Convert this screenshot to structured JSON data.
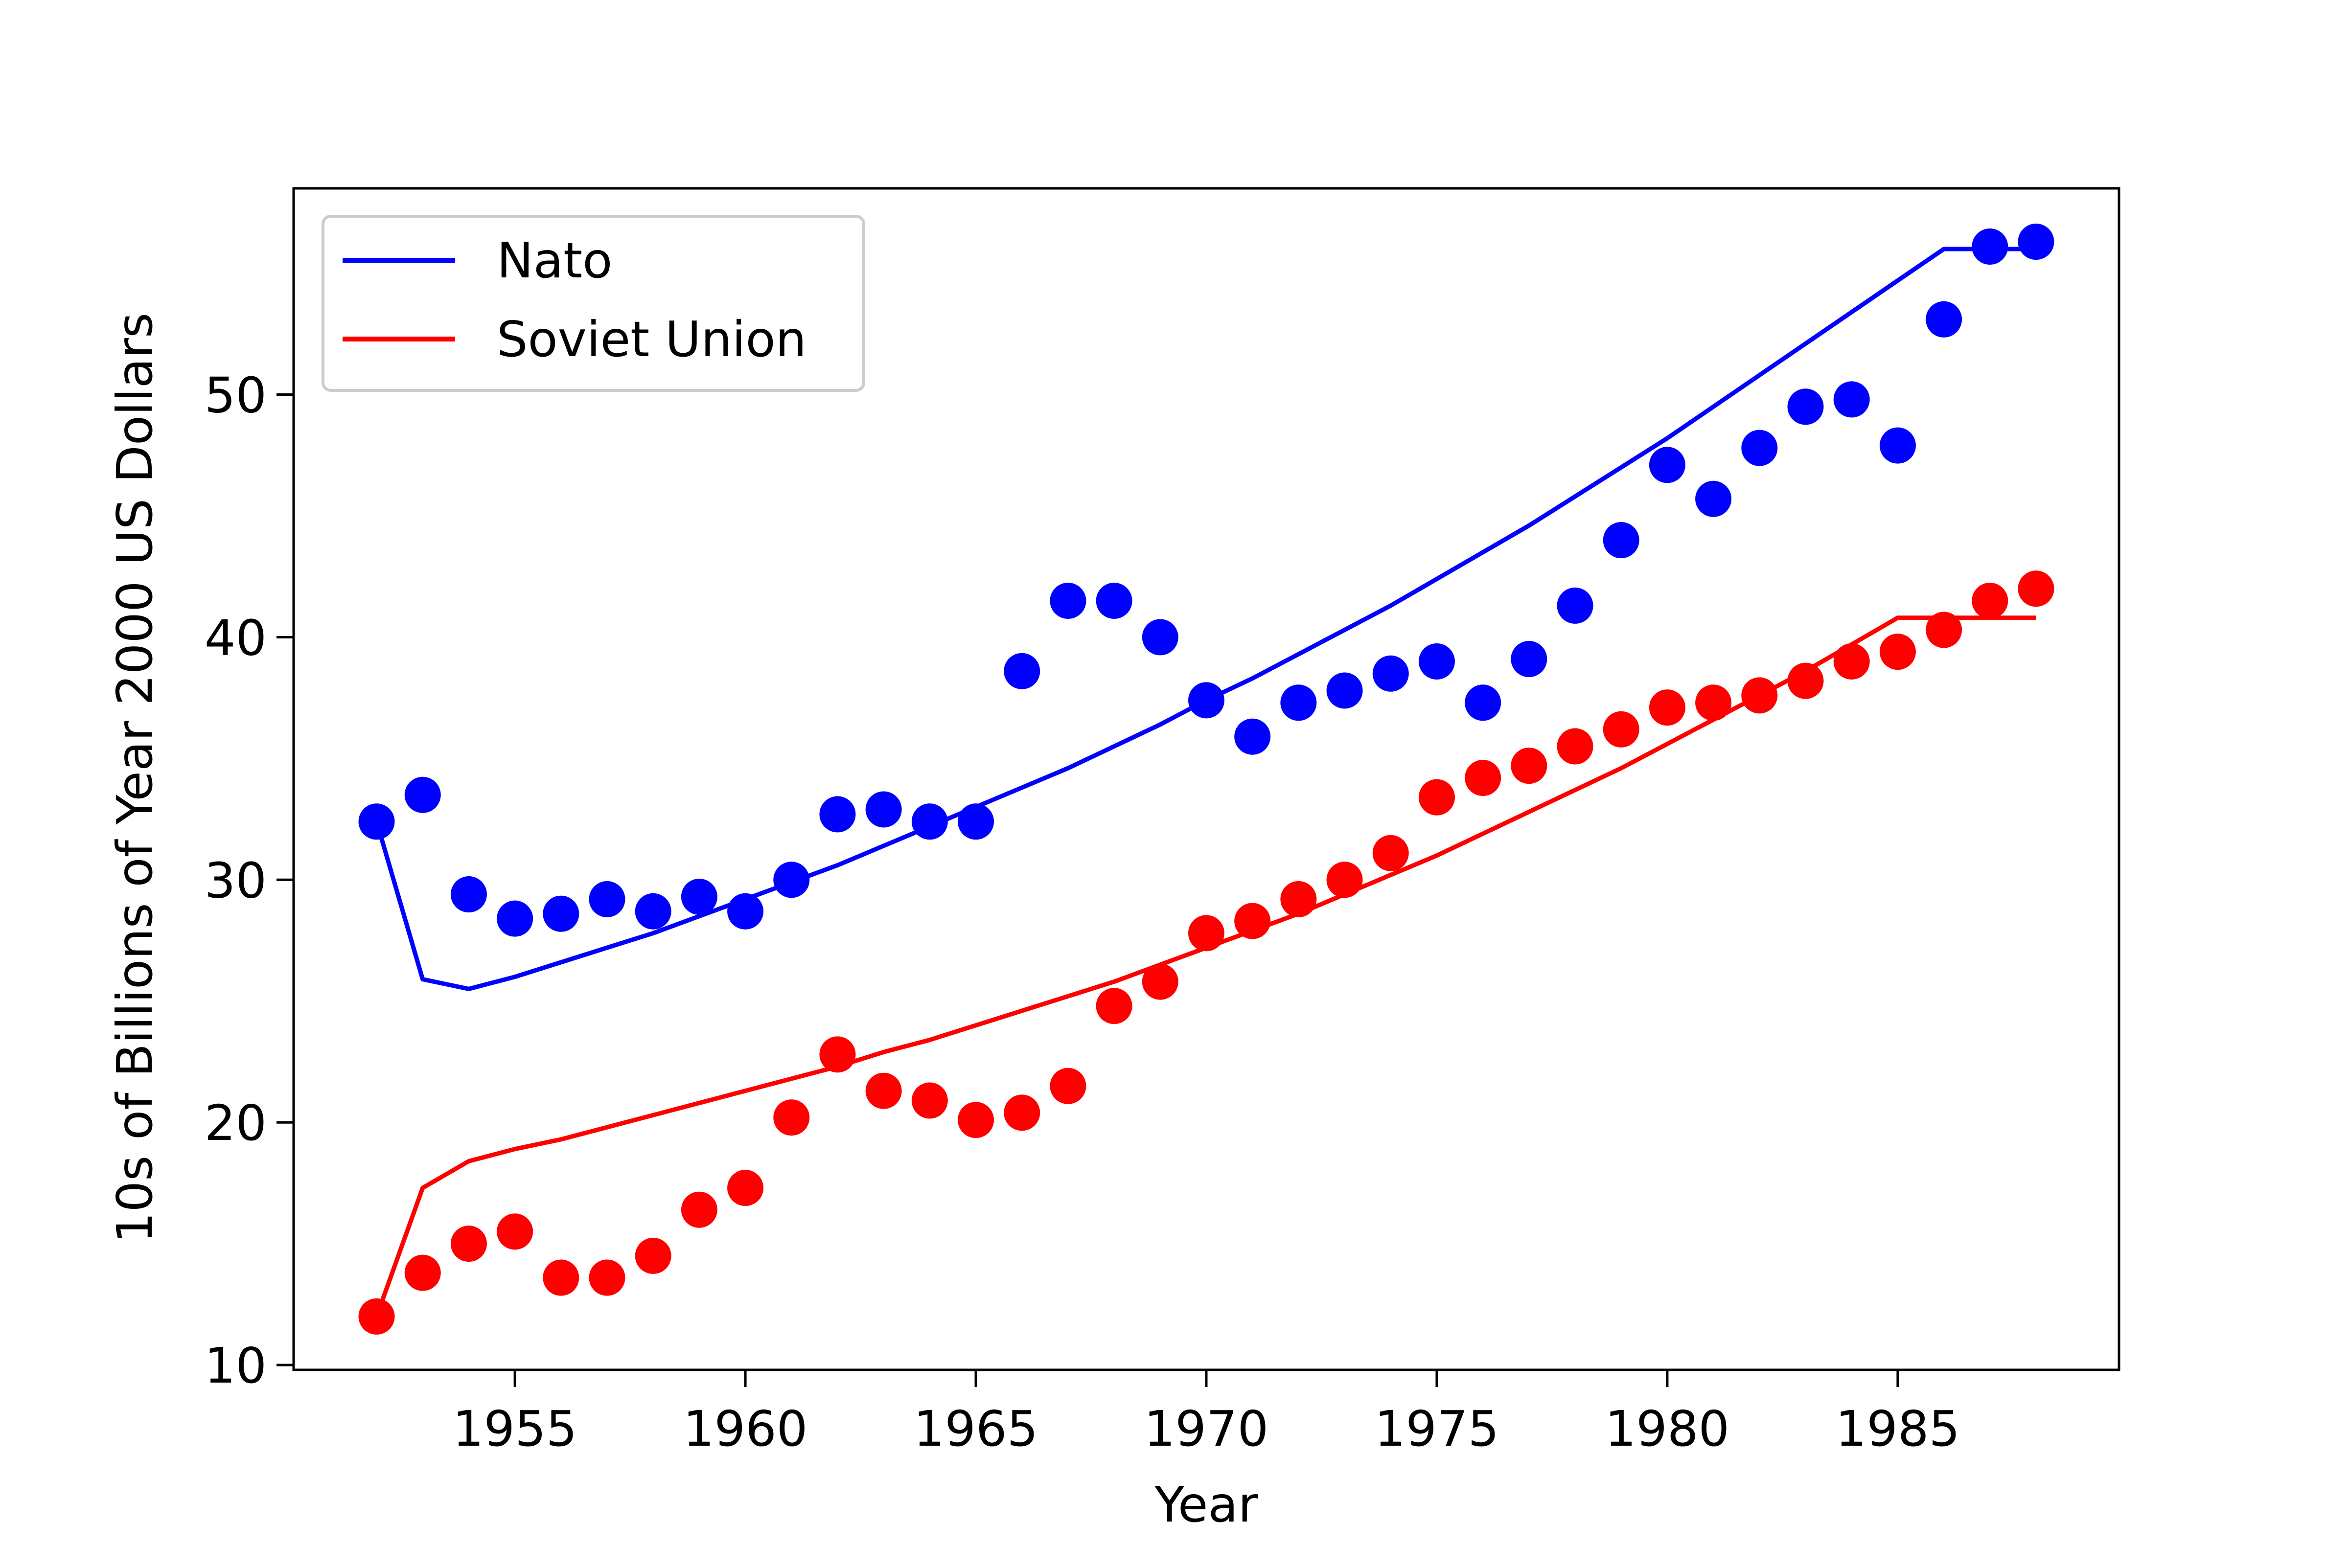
{
  "chart_data": {
    "type": "line",
    "title": "",
    "xlabel": "Year",
    "ylabel": "10s of Billions of Year 2000 US Dollars",
    "xlim": [
      1950.2,
      1989.8
    ],
    "ylim": [
      9.8,
      58.5
    ],
    "xticks": [
      1955,
      1960,
      1965,
      1970,
      1975,
      1980,
      1985
    ],
    "yticks": [
      10,
      20,
      30,
      40,
      50
    ],
    "grid": false,
    "legend_position": "top-left",
    "x": [
      1952,
      1953,
      1954,
      1955,
      1956,
      1957,
      1958,
      1959,
      1960,
      1961,
      1962,
      1963,
      1964,
      1965,
      1966,
      1967,
      1968,
      1969,
      1970,
      1971,
      1972,
      1973,
      1974,
      1975,
      1976,
      1977,
      1978,
      1979,
      1980,
      1981,
      1982,
      1983,
      1984,
      1985,
      1986,
      1987,
      1988
    ],
    "series": [
      {
        "name": "Nato",
        "color": "#0000ff",
        "scatter": [
          32.4,
          33.5,
          29.4,
          28.4,
          28.6,
          29.2,
          28.7,
          29.3,
          28.7,
          30.0,
          32.7,
          32.9,
          32.4,
          32.4,
          38.6,
          41.5,
          41.5,
          40.0,
          37.4,
          35.9,
          37.3,
          37.8,
          38.5,
          39.0,
          37.3,
          39.1,
          41.3,
          44.0,
          47.1,
          45.7,
          47.8,
          49.5,
          49.8,
          47.9,
          53.1,
          56.1,
          56.3
        ],
        "fit": [
          32.4,
          25.9,
          25.5,
          26.0,
          26.6,
          27.2,
          27.8,
          28.5,
          29.2,
          29.9,
          30.6,
          31.4,
          32.2,
          33.0,
          33.8,
          34.6,
          35.5,
          36.4,
          37.4,
          38.3,
          39.3,
          40.3,
          41.3,
          42.4,
          43.5,
          44.6,
          45.8,
          47.0,
          48.2,
          49.5,
          50.8,
          52.1,
          53.4,
          54.7,
          56.0,
          56.0,
          56.0
        ]
      },
      {
        "name": "Soviet Union",
        "color": "#ff0000",
        "scatter": [
          12.0,
          13.8,
          15.0,
          15.5,
          13.6,
          13.6,
          14.5,
          16.4,
          17.3,
          20.2,
          22.8,
          21.3,
          20.9,
          20.1,
          20.4,
          21.5,
          24.8,
          25.8,
          27.8,
          28.3,
          29.2,
          30.0,
          31.1,
          33.4,
          34.2,
          34.7,
          35.5,
          36.2,
          37.1,
          37.3,
          37.6,
          38.2,
          39.0,
          39.4,
          40.3,
          41.5,
          42.0
        ],
        "fit": [
          12.0,
          17.3,
          18.4,
          18.9,
          19.3,
          19.8,
          20.3,
          20.8,
          21.3,
          21.8,
          22.3,
          22.9,
          23.4,
          24.0,
          24.6,
          25.2,
          25.8,
          26.5,
          27.2,
          27.9,
          28.6,
          29.4,
          30.2,
          31.0,
          31.9,
          32.8,
          33.7,
          34.6,
          35.6,
          36.6,
          37.6,
          38.6,
          39.7,
          40.8,
          40.8,
          40.8,
          40.8
        ]
      }
    ]
  }
}
